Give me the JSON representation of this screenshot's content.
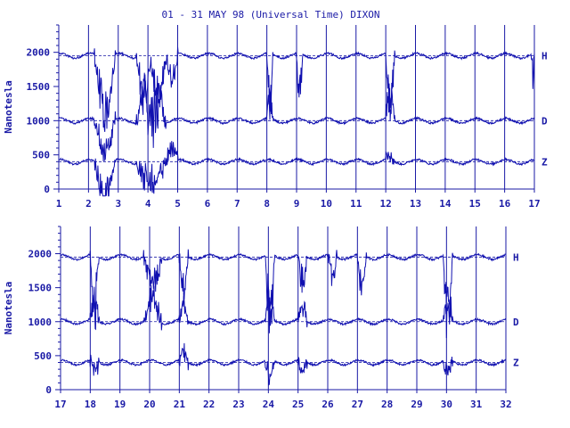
{
  "title": "01 - 31 MAY 98 (Universal Time) DIXON",
  "colors": {
    "ink": "#1a1aa6",
    "trace": "#1010b0",
    "background": "#ffffff"
  },
  "chart_data": [
    {
      "type": "line",
      "title": "01 - 31 MAY 98 (Universal Time) DIXON",
      "xlabel": "",
      "ylabel": "Nanotesla",
      "xlim": [
        1,
        17
      ],
      "ylim": [
        0,
        2400
      ],
      "x_ticks": [
        "1",
        "2",
        "3",
        "4",
        "5",
        "6",
        "7",
        "8",
        "9",
        "10",
        "11",
        "12",
        "13",
        "14",
        "15",
        "16",
        "17"
      ],
      "y_ticks": [
        "0",
        "500",
        "1000",
        "1500",
        "2000"
      ],
      "grid": "vertical day lines",
      "series": [
        {
          "name": "H",
          "baseline": 1950,
          "disturbances": [
            [
              2.2,
              2.9,
              -800
            ],
            [
              3.6,
              4.6,
              -900
            ],
            [
              4.6,
              5.0,
              -350
            ],
            [
              8.0,
              8.2,
              -700
            ],
            [
              9.0,
              9.2,
              -600
            ],
            [
              12.0,
              12.3,
              -700
            ],
            [
              16.9,
              17.0,
              -300
            ]
          ]
        },
        {
          "name": "D",
          "baseline": 1000,
          "disturbances": [
            [
              2.2,
              2.9,
              -400
            ],
            [
              3.6,
              4.6,
              600
            ],
            [
              8.0,
              8.2,
              400
            ],
            [
              12.0,
              12.3,
              400
            ]
          ]
        },
        {
          "name": "Z",
          "baseline": 400,
          "disturbances": [
            [
              2.2,
              2.9,
              -450
            ],
            [
              3.6,
              4.6,
              -300
            ],
            [
              4.6,
              5.0,
              200
            ],
            [
              12.0,
              12.3,
              100
            ]
          ]
        }
      ]
    },
    {
      "type": "line",
      "title": "",
      "xlabel": "",
      "ylabel": "Nanotesla",
      "xlim": [
        17,
        32
      ],
      "ylim": [
        0,
        2400
      ],
      "x_ticks": [
        "17",
        "18",
        "19",
        "20",
        "21",
        "22",
        "23",
        "24",
        "25",
        "26",
        "27",
        "28",
        "29",
        "30",
        "31",
        "32"
      ],
      "y_ticks": [
        "0",
        "500",
        "1000",
        "1500",
        "2000"
      ],
      "grid": "vertical day lines",
      "series": [
        {
          "name": "H",
          "baseline": 1950,
          "disturbances": [
            [
              18.0,
              18.3,
              -750
            ],
            [
              19.8,
              20.4,
              -400
            ],
            [
              21.0,
              21.3,
              -450
            ],
            [
              23.9,
              24.2,
              -900
            ],
            [
              25.0,
              25.3,
              -450
            ],
            [
              26.0,
              26.3,
              -300
            ],
            [
              27.0,
              27.3,
              -450
            ],
            [
              29.9,
              30.2,
              -900
            ]
          ]
        },
        {
          "name": "D",
          "baseline": 1000,
          "disturbances": [
            [
              18.0,
              18.3,
              300
            ],
            [
              19.8,
              20.4,
              300
            ],
            [
              21.0,
              21.3,
              250
            ],
            [
              23.9,
              24.2,
              350
            ],
            [
              25.0,
              25.3,
              200
            ],
            [
              29.9,
              30.2,
              350
            ]
          ]
        },
        {
          "name": "Z",
          "baseline": 400,
          "disturbances": [
            [
              18.0,
              18.3,
              -150
            ],
            [
              21.0,
              21.3,
              150
            ],
            [
              23.9,
              24.2,
              -200
            ],
            [
              25.0,
              25.3,
              -100
            ],
            [
              29.9,
              30.2,
              -150
            ]
          ]
        }
      ]
    }
  ]
}
